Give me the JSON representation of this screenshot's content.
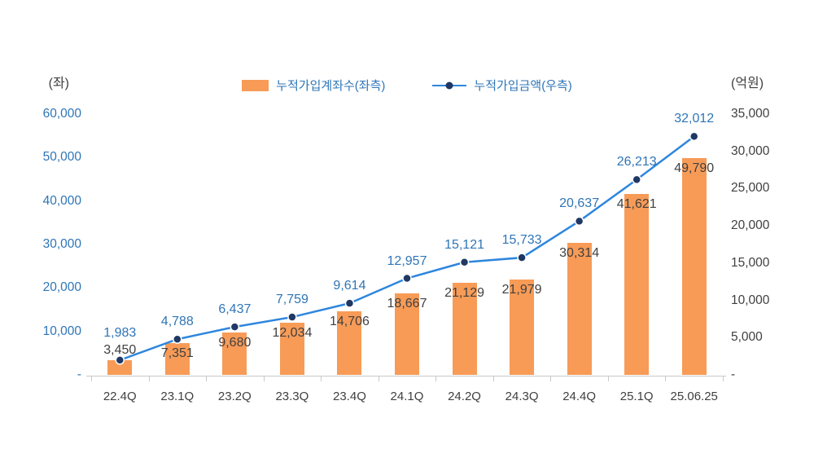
{
  "chart_data": {
    "type": "combo",
    "title": "",
    "categories": [
      "22.4Q",
      "23.1Q",
      "23.2Q",
      "23.3Q",
      "23.4Q",
      "24.1Q",
      "24.2Q",
      "24.3Q",
      "24.4Q",
      "25.1Q",
      "25.06.25"
    ],
    "series": [
      {
        "name": "누적가입계좌수(좌측)",
        "type": "bar",
        "axis": "left",
        "values": [
          3450,
          7351,
          9680,
          12034,
          14706,
          18667,
          21129,
          21979,
          30314,
          41621,
          49790
        ],
        "labels": [
          "3,450",
          "7,351",
          "9,680",
          "12,034",
          "14,706",
          "18,667",
          "21,129",
          "21,979",
          "30,314",
          "41,621",
          "49,790"
        ]
      },
      {
        "name": "누적가입금액(우측)",
        "type": "line",
        "axis": "right",
        "values": [
          1983,
          4788,
          6437,
          7759,
          9614,
          12957,
          15121,
          15733,
          20637,
          26213,
          32012
        ],
        "labels": [
          "1,983",
          "4,788",
          "6,437",
          "7,759",
          "9,614",
          "12,957",
          "15,121",
          "15,733",
          "20,637",
          "26,213",
          "32,012"
        ]
      }
    ],
    "left_axis": {
      "unit": "(좌)",
      "max": 60000,
      "ticks": [
        {
          "label": "60,000",
          "value": 60000
        },
        {
          "label": "50,000",
          "value": 50000
        },
        {
          "label": "40,000",
          "value": 40000
        },
        {
          "label": "30,000",
          "value": 30000
        },
        {
          "label": "20,000",
          "value": 20000
        },
        {
          "label": "10,000",
          "value": 10000
        },
        {
          "label": "-",
          "value": 0
        }
      ]
    },
    "right_axis": {
      "unit": "(억원)",
      "max": 35000,
      "ticks": [
        {
          "label": "35,000",
          "value": 35000
        },
        {
          "label": "30,000",
          "value": 30000
        },
        {
          "label": "25,000",
          "value": 25000
        },
        {
          "label": "20,000",
          "value": 20000
        },
        {
          "label": "15,000",
          "value": 15000
        },
        {
          "label": "10,000",
          "value": 10000
        },
        {
          "label": "5,000",
          "value": 5000
        },
        {
          "label": "-",
          "value": 0
        }
      ]
    },
    "legend_position": "top",
    "grid": false,
    "colors": {
      "bar": "#F79B57",
      "line": "#2E86DE",
      "dot": "#1F3864",
      "blue_text": "#2E75B6",
      "dark_text": "#404040",
      "axis_line": "#C9C9C9"
    }
  }
}
